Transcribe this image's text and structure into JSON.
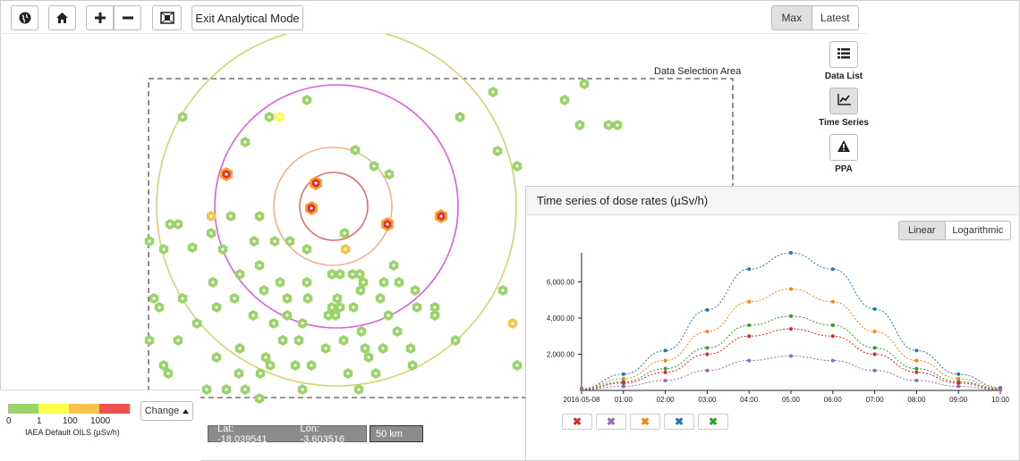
{
  "toolbar": {
    "exit_label": "Exit Analytical Mode",
    "max_label": "Max",
    "latest_label": "Latest"
  },
  "sidebar": {
    "data_list_label": "Data List",
    "time_series_label": "Time Series",
    "ppa_label": "PPA"
  },
  "map": {
    "selection_label": "Data Selection Area"
  },
  "legend": {
    "colors": [
      "#9ad36a",
      "#ffff4d",
      "#f8c34a",
      "#f05050"
    ],
    "ticks": [
      "0",
      "1",
      "100",
      "1000"
    ],
    "title": "IAEA Default OILS (µSv/h)",
    "change_label": "Change"
  },
  "status": {
    "lat": "Lat: -18.039541",
    "lon": "Lon: -3.603516",
    "scale": "50 km"
  },
  "time_series": {
    "title": "Time series of dose rates (µSv/h)",
    "linear_label": "Linear",
    "log_label": "Logarithmic"
  },
  "chart_data": {
    "type": "line",
    "x": [
      "2016-05-08",
      "01:00",
      "02:00",
      "03:00",
      "04:00",
      "05:00",
      "06:00",
      "07:00",
      "08:00",
      "09:00",
      "10:00"
    ],
    "yticks": [
      "2,000.00",
      "4,000.00",
      "6,000.00"
    ],
    "ylim": [
      0,
      7600
    ],
    "series": [
      {
        "color": "#1f77b4",
        "values": [
          100,
          900,
          2200,
          4450,
          6700,
          7600,
          6700,
          4500,
          2200,
          900,
          150
        ]
      },
      {
        "color": "#ff7f0e",
        "values": [
          100,
          650,
          1650,
          3250,
          4900,
          5600,
          4900,
          3250,
          1650,
          650,
          100
        ]
      },
      {
        "color": "#2ca02c",
        "values": [
          80,
          480,
          1200,
          2350,
          3600,
          4100,
          3600,
          2350,
          1200,
          480,
          80
        ]
      },
      {
        "color": "#d62728",
        "values": [
          60,
          400,
          1000,
          2000,
          3000,
          3400,
          3000,
          2000,
          1000,
          400,
          60
        ]
      },
      {
        "color": "#9467bd",
        "values": [
          40,
          220,
          550,
          1100,
          1650,
          1900,
          1650,
          1100,
          550,
          220,
          40
        ]
      }
    ]
  },
  "series_buttons": [
    {
      "color": "#d62728",
      "glyph": "✖"
    },
    {
      "color": "#9467bd",
      "glyph": "✖"
    },
    {
      "color": "#ff7f0e",
      "glyph": "✖"
    },
    {
      "color": "#1f77b4",
      "glyph": "✖"
    },
    {
      "color": "#2ca02c",
      "glyph": "✖"
    }
  ],
  "icons": [
    "globe-icon",
    "home-icon",
    "zoom-in-icon",
    "zoom-out-icon",
    "fit-extent-icon",
    "list-icon",
    "chart-line-icon",
    "warning-icon",
    "caret-up-icon"
  ]
}
